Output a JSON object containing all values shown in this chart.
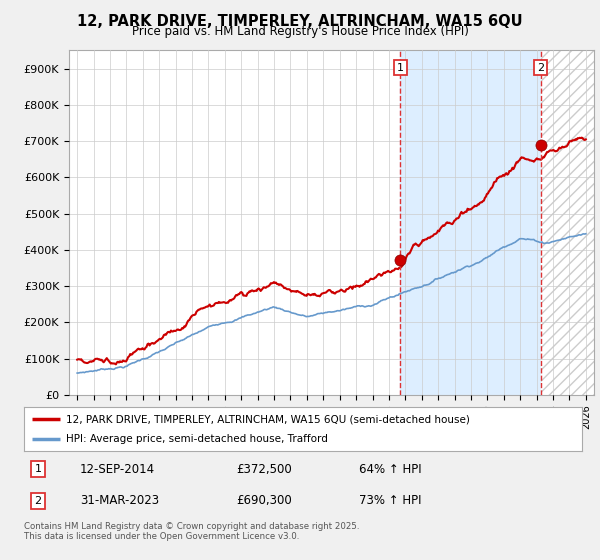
{
  "title": "12, PARK DRIVE, TIMPERLEY, ALTRINCHAM, WA15 6QU",
  "subtitle": "Price paid vs. HM Land Registry's House Price Index (HPI)",
  "ylabel_ticks": [
    "£0",
    "£100K",
    "£200K",
    "£300K",
    "£400K",
    "£500K",
    "£600K",
    "£700K",
    "£800K",
    "£900K"
  ],
  "ytick_values": [
    0,
    100000,
    200000,
    300000,
    400000,
    500000,
    600000,
    700000,
    800000,
    900000
  ],
  "ylim": [
    0,
    950000
  ],
  "xlim_start": 1994.5,
  "xlim_end": 2026.5,
  "transaction1_date": 2014.7,
  "transaction1_price": 372500,
  "transaction1_label": "1",
  "transaction2_date": 2023.25,
  "transaction2_price": 690300,
  "transaction2_label": "2",
  "legend_line1": "12, PARK DRIVE, TIMPERLEY, ALTRINCHAM, WA15 6QU (semi-detached house)",
  "legend_line2": "HPI: Average price, semi-detached house, Trafford",
  "footnote": "Contains HM Land Registry data © Crown copyright and database right 2025.\nThis data is licensed under the Open Government Licence v3.0.",
  "line_color_red": "#cc0000",
  "line_color_blue": "#6699cc",
  "background_color": "#f0f0f0",
  "plot_bg_color": "#ffffff",
  "vline_color": "#dd3333",
  "grid_color": "#cccccc",
  "shade_color": "#ddeeff",
  "hatch_color": "#cccccc"
}
